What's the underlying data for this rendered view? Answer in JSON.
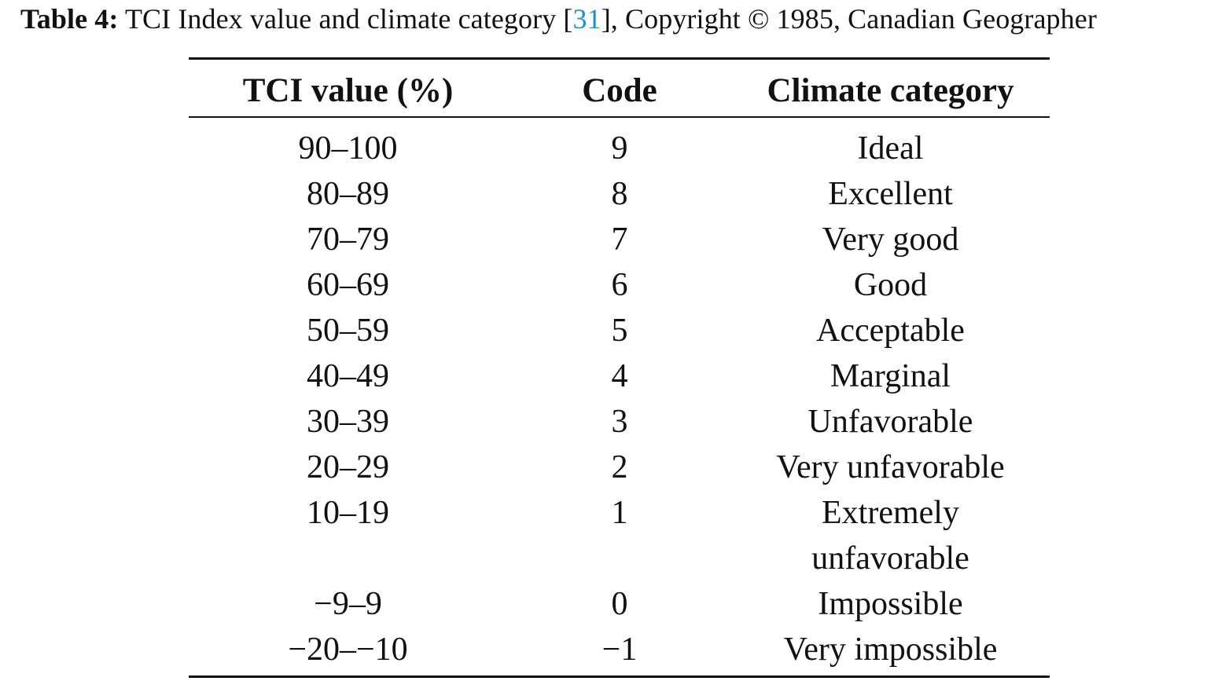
{
  "caption": {
    "label": "Table 4:",
    "text_before_cite": " TCI Index value and climate category [",
    "cite_number": "31",
    "text_after_cite": "], Copyright © 1985, Canadian Geographer"
  },
  "table": {
    "headers": [
      "TCI value (%)",
      "Code",
      "Climate category"
    ],
    "rows": [
      {
        "value": "90–100",
        "code": "9",
        "category": [
          "Ideal"
        ]
      },
      {
        "value": "80–89",
        "code": "8",
        "category": [
          "Excellent"
        ]
      },
      {
        "value": "70–79",
        "code": "7",
        "category": [
          "Very good"
        ]
      },
      {
        "value": "60–69",
        "code": "6",
        "category": [
          "Good"
        ]
      },
      {
        "value": "50–59",
        "code": "5",
        "category": [
          "Acceptable"
        ]
      },
      {
        "value": "40–49",
        "code": "4",
        "category": [
          "Marginal"
        ]
      },
      {
        "value": "30–39",
        "code": "3",
        "category": [
          "Unfavorable"
        ]
      },
      {
        "value": "20–29",
        "code": "2",
        "category": [
          "Very unfavorable"
        ]
      },
      {
        "value": "10–19",
        "code": "1",
        "category": [
          "Extremely",
          "unfavorable"
        ]
      },
      {
        "value": "−9–9",
        "code": "0",
        "category": [
          "Impossible"
        ]
      },
      {
        "value": "−20–−10",
        "code": "−1",
        "category": [
          "Very impossible"
        ]
      }
    ]
  },
  "colors": {
    "text": "#111111",
    "citation_link": "#1f8fc9",
    "background": "#ffffff"
  }
}
